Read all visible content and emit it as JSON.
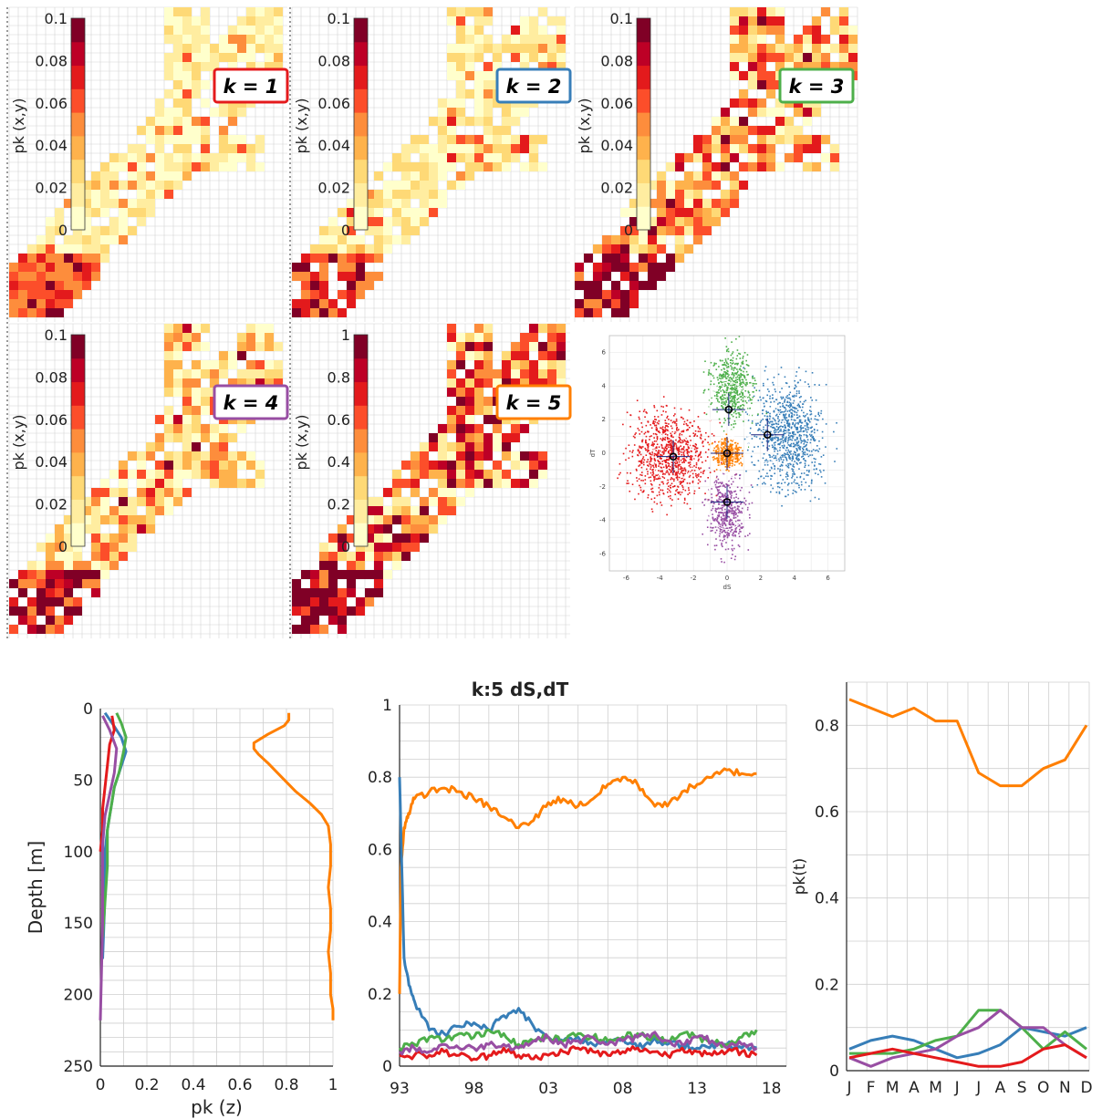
{
  "colors": {
    "k1": "#e41a1c",
    "k2": "#377eb8",
    "k3": "#4daf4a",
    "k4": "#984ea3",
    "k5": "#ff7f00",
    "heat": [
      "#ffffcc",
      "#ffeda0",
      "#fed976",
      "#feb24c",
      "#fd8d3c",
      "#fc4e2a",
      "#e31a1c",
      "#bd0026",
      "#800026"
    ]
  },
  "chart_data": [
    {
      "type": "heatmap",
      "panel": "k1",
      "label": "k = 1",
      "cbar_label": "pk (x,y)",
      "cbar_ticks": [
        "0",
        "0.02",
        "0.04",
        "0.06",
        "0.08",
        "0.1"
      ],
      "range": [
        0,
        0.1
      ]
    },
    {
      "type": "heatmap",
      "panel": "k2",
      "label": "k = 2",
      "cbar_label": "pk (x,y)",
      "cbar_ticks": [
        "0",
        "0.02",
        "0.04",
        "0.06",
        "0.08",
        "0.1"
      ],
      "range": [
        0,
        0.1
      ]
    },
    {
      "type": "heatmap",
      "panel": "k3",
      "label": "k = 3",
      "cbar_label": "pk (x,y)",
      "cbar_ticks": [
        "0",
        "0.02",
        "0.04",
        "0.06",
        "0.08",
        "0.1"
      ],
      "range": [
        0,
        0.1
      ]
    },
    {
      "type": "heatmap",
      "panel": "k4",
      "label": "k = 4",
      "cbar_label": "pk (x,y)",
      "cbar_ticks": [
        "0",
        "0.02",
        "0.04",
        "0.06",
        "0.08",
        "0.1"
      ],
      "range": [
        0,
        0.1
      ]
    },
    {
      "type": "heatmap",
      "panel": "k5",
      "label": "k = 5",
      "cbar_label": "pk (x,y)",
      "cbar_ticks": [
        "0",
        "0.2",
        "0.4",
        "0.6",
        "0.8",
        "1"
      ],
      "range": [
        0,
        1
      ]
    },
    {
      "type": "scatter",
      "panel": "clusters",
      "xlabel": "dS",
      "ylabel": "dT",
      "xlim": [
        -7,
        7
      ],
      "ylim": [
        -7,
        7
      ],
      "xticks": [
        "-6",
        "-4",
        "-2",
        "0",
        "2",
        "4",
        "6"
      ],
      "yticks": [
        "6",
        "4",
        "2",
        "0",
        "-2",
        "-4",
        "-6"
      ],
      "centroids": [
        {
          "cluster": "k1",
          "x": -3.2,
          "y": -0.2
        },
        {
          "cluster": "k2",
          "x": 2.4,
          "y": 1.1
        },
        {
          "cluster": "k3",
          "x": 0.1,
          "y": 2.6
        },
        {
          "cluster": "k4",
          "x": 0.0,
          "y": -2.9
        },
        {
          "cluster": "k5",
          "x": 0.0,
          "y": 0.0
        }
      ]
    },
    {
      "type": "line",
      "panel": "depth",
      "xlabel": "pk (z)",
      "ylabel": "Depth [m]",
      "xlim": [
        0,
        1
      ],
      "ylim": [
        250,
        0
      ],
      "xticks": [
        "0",
        "0.2",
        "0.4",
        "0.6",
        "0.8",
        "1"
      ],
      "yticks": [
        "0",
        "50",
        "100",
        "150",
        "200",
        "250"
      ],
      "series": [
        {
          "color": "k5",
          "x": [
            0.81,
            0.81,
            0.79,
            0.72,
            0.66,
            0.66,
            0.68,
            0.72,
            0.78,
            0.84,
            0.9,
            0.95,
            0.98,
            0.99,
            0.99,
            0.98,
            0.99,
            0.99,
            0.98,
            0.99,
            0.99,
            1.0,
            1.0
          ],
          "y": [
            3,
            8,
            12,
            18,
            24,
            28,
            32,
            38,
            48,
            58,
            66,
            74,
            82,
            95,
            110,
            125,
            140,
            155,
            170,
            185,
            200,
            210,
            218
          ]
        },
        {
          "color": "k2",
          "x": [
            0.02,
            0.05,
            0.09,
            0.11,
            0.08,
            0.06,
            0.05,
            0.04,
            0.03,
            0.02,
            0.02,
            0.01
          ],
          "y": [
            3,
            10,
            20,
            30,
            45,
            55,
            65,
            75,
            85,
            100,
            130,
            175
          ]
        },
        {
          "color": "k3",
          "x": [
            0.07,
            0.09,
            0.11,
            0.1,
            0.08,
            0.06,
            0.05,
            0.04,
            0.03,
            0.03,
            0.02,
            0.01
          ],
          "y": [
            3,
            10,
            20,
            30,
            45,
            55,
            65,
            75,
            85,
            110,
            135,
            160
          ]
        },
        {
          "color": "k1",
          "x": [
            0.05,
            0.06,
            0.04,
            0.03,
            0.02,
            0.01,
            0.01,
            0.0
          ],
          "y": [
            5,
            15,
            25,
            40,
            55,
            70,
            85,
            100
          ]
        },
        {
          "color": "k4",
          "x": [
            0.01,
            0.04,
            0.07,
            0.06,
            0.04,
            0.02,
            0.01,
            0.01,
            0.0
          ],
          "y": [
            5,
            15,
            28,
            45,
            60,
            75,
            95,
            150,
            218
          ]
        }
      ]
    },
    {
      "type": "line",
      "panel": "time",
      "title": "k:5 dS,dT",
      "xlim": [
        1993,
        2019
      ],
      "ylim": [
        0,
        1
      ],
      "xticks": [
        "93",
        "98",
        "03",
        "08",
        "13",
        "18"
      ],
      "yticks": [
        "0",
        "0.2",
        "0.4",
        "0.6",
        "0.8",
        "1"
      ],
      "series": [
        {
          "color": "k5",
          "x": [
            1993.0,
            1993.1,
            1993.3,
            1993.6,
            1994,
            1995,
            1996,
            1997,
            1998,
            1999,
            2000,
            2001,
            2002,
            2003,
            2004,
            2005,
            2006,
            2007,
            2008,
            2009,
            2010,
            2011,
            2012,
            2013,
            2014,
            2015,
            2016,
            2017
          ],
          "y": [
            0.2,
            0.55,
            0.66,
            0.7,
            0.74,
            0.76,
            0.77,
            0.76,
            0.74,
            0.72,
            0.69,
            0.66,
            0.68,
            0.73,
            0.74,
            0.72,
            0.74,
            0.78,
            0.8,
            0.78,
            0.73,
            0.72,
            0.76,
            0.78,
            0.8,
            0.82,
            0.81,
            0.81
          ]
        },
        {
          "color": "k2",
          "x": [
            1993.0,
            1993.3,
            1993.7,
            1994,
            1995,
            1996,
            1997,
            1998,
            1999,
            2000,
            2001,
            2002,
            2003,
            2004,
            2005,
            2006,
            2007,
            2008,
            2009,
            2010,
            2011,
            2012,
            2013,
            2014,
            2015,
            2016,
            2017
          ],
          "y": [
            0.8,
            0.3,
            0.22,
            0.18,
            0.1,
            0.09,
            0.11,
            0.12,
            0.1,
            0.14,
            0.16,
            0.11,
            0.08,
            0.07,
            0.08,
            0.06,
            0.07,
            0.08,
            0.05,
            0.07,
            0.06,
            0.06,
            0.05,
            0.06,
            0.06,
            0.05,
            0.05
          ]
        },
        {
          "color": "k3",
          "x": [
            1993,
            1994,
            1995,
            1996,
            1997,
            1998,
            1999,
            2000,
            2001,
            2002,
            2003,
            2004,
            2005,
            2006,
            2007,
            2008,
            2009,
            2010,
            2011,
            2012,
            2013,
            2014,
            2015,
            2016,
            2017
          ],
          "y": [
            0.05,
            0.06,
            0.08,
            0.07,
            0.09,
            0.08,
            0.1,
            0.09,
            0.06,
            0.07,
            0.08,
            0.07,
            0.09,
            0.08,
            0.07,
            0.08,
            0.09,
            0.08,
            0.07,
            0.09,
            0.08,
            0.07,
            0.06,
            0.08,
            0.1
          ]
        },
        {
          "color": "k1",
          "x": [
            1993,
            1994,
            1995,
            1996,
            1997,
            1998,
            1999,
            2000,
            2001,
            2002,
            2003,
            2004,
            2005,
            2006,
            2007,
            2008,
            2009,
            2010,
            2011,
            2012,
            2013,
            2014,
            2015,
            2016,
            2017
          ],
          "y": [
            0.03,
            0.03,
            0.03,
            0.04,
            0.03,
            0.02,
            0.03,
            0.05,
            0.03,
            0.02,
            0.03,
            0.04,
            0.05,
            0.04,
            0.03,
            0.04,
            0.05,
            0.04,
            0.03,
            0.05,
            0.04,
            0.03,
            0.04,
            0.04,
            0.03
          ]
        },
        {
          "color": "k4",
          "x": [
            1993,
            1994,
            1995,
            1996,
            1997,
            1998,
            1999,
            2000,
            2001,
            2002,
            2003,
            2004,
            2005,
            2006,
            2007,
            2008,
            2009,
            2010,
            2011,
            2012,
            2013,
            2014,
            2015,
            2016,
            2017
          ],
          "y": [
            0.04,
            0.05,
            0.04,
            0.06,
            0.05,
            0.05,
            0.06,
            0.06,
            0.05,
            0.07,
            0.08,
            0.06,
            0.07,
            0.08,
            0.06,
            0.07,
            0.08,
            0.09,
            0.07,
            0.06,
            0.08,
            0.07,
            0.05,
            0.06,
            0.05
          ]
        }
      ]
    },
    {
      "type": "line",
      "panel": "season",
      "ylabel": "pk(t)",
      "categories": [
        "J",
        "F",
        "M",
        "A",
        "M",
        "J",
        "J",
        "A",
        "S",
        "O",
        "N",
        "D"
      ],
      "ylim": [
        0,
        0.9
      ],
      "yticks": [
        "0",
        "0.2",
        "0.4",
        "0.6",
        "0.8"
      ],
      "series": [
        {
          "color": "k5",
          "values": [
            0.86,
            0.84,
            0.82,
            0.84,
            0.81,
            0.81,
            0.69,
            0.66,
            0.66,
            0.7,
            0.72,
            0.8
          ]
        },
        {
          "color": "k2",
          "values": [
            0.05,
            0.07,
            0.08,
            0.07,
            0.05,
            0.03,
            0.04,
            0.06,
            0.1,
            0.09,
            0.08,
            0.1
          ]
        },
        {
          "color": "k3",
          "values": [
            0.04,
            0.04,
            0.04,
            0.05,
            0.07,
            0.08,
            0.14,
            0.14,
            0.1,
            0.05,
            0.09,
            0.05
          ]
        },
        {
          "color": "k4",
          "values": [
            0.03,
            0.01,
            0.03,
            0.04,
            0.05,
            0.08,
            0.1,
            0.14,
            0.1,
            0.1,
            0.06,
            0.03
          ]
        },
        {
          "color": "k1",
          "values": [
            0.03,
            0.04,
            0.05,
            0.04,
            0.03,
            0.02,
            0.01,
            0.01,
            0.02,
            0.05,
            0.06,
            0.03
          ]
        }
      ]
    }
  ]
}
